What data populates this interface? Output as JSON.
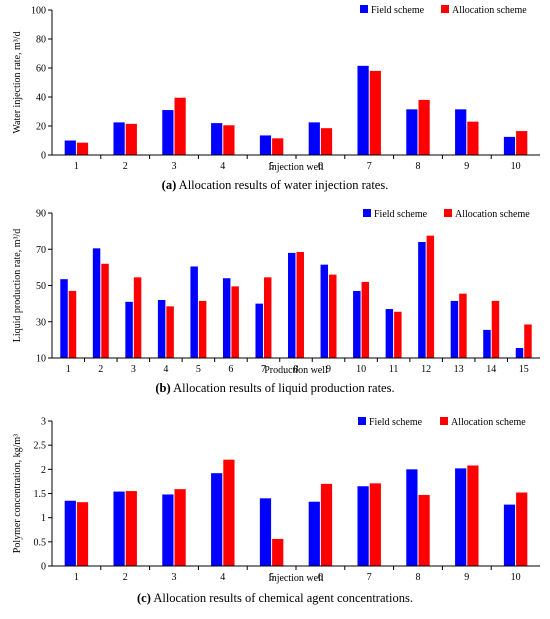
{
  "colors": {
    "field": "#0000ff",
    "allocation": "#ff0000",
    "axis": "#000000"
  },
  "chart_data": [
    {
      "type": "bar",
      "ylabel": "Water injection rate, m³/d",
      "xlabel": "Injection well",
      "caption": {
        "letter": "(a)",
        "text": " Allocation results of water injection rates."
      },
      "ylim": [
        0,
        100
      ],
      "yticks": [
        0,
        20,
        40,
        60,
        80,
        100
      ],
      "ytick_labels": [
        "0",
        "20",
        "40",
        "60",
        "80",
        "100"
      ],
      "categories": [
        "1",
        "2",
        "3",
        "4",
        "5",
        "6",
        "7",
        "8",
        "9",
        "10"
      ],
      "legend_position": "top-right",
      "series": [
        {
          "name": "Field scheme",
          "values": [
            10,
            22.5,
            31,
            22,
            13.5,
            22.5,
            61.5,
            31.5,
            31.5,
            12.5
          ]
        },
        {
          "name": "Allocation scheme",
          "values": [
            8.5,
            21.5,
            39.5,
            20.5,
            11.5,
            18.5,
            58,
            38,
            23,
            16.5
          ]
        }
      ]
    },
    {
      "type": "bar",
      "ylabel": "Liquid production rate, m³/d",
      "xlabel": "Production well",
      "caption": {
        "letter": "(b)",
        "text": " Allocation results of liquid production rates."
      },
      "ylim": [
        10,
        90
      ],
      "yticks": [
        10,
        30,
        50,
        70,
        90
      ],
      "ytick_labels": [
        "10",
        "30",
        "50",
        "70",
        "90"
      ],
      "categories": [
        "1",
        "2",
        "3",
        "4",
        "5",
        "6",
        "7",
        "8",
        "9",
        "10",
        "11",
        "12",
        "13",
        "14",
        "15"
      ],
      "legend_position": "top-right",
      "series": [
        {
          "name": "Field scheme",
          "values": [
            53.5,
            70.5,
            41,
            42,
            60.5,
            54,
            40,
            68,
            61.5,
            47,
            37,
            74,
            41.5,
            25.5,
            15.5
          ]
        },
        {
          "name": "Allocation scheme",
          "values": [
            47,
            62,
            54.5,
            38.5,
            41.5,
            49.5,
            54.5,
            68.5,
            56,
            52,
            35.5,
            77.5,
            45.5,
            41.5,
            28.5
          ]
        }
      ]
    },
    {
      "type": "bar",
      "ylabel": "Polymer concentration, kg/m³",
      "xlabel": "Injection well",
      "caption": {
        "letter": "(c)",
        "text": " Allocation results of chemical agent concentrations."
      },
      "ylim": [
        0,
        3
      ],
      "yticks": [
        0,
        0.5,
        1,
        1.5,
        2,
        2.5,
        3
      ],
      "ytick_labels": [
        "0",
        "0.5",
        "1",
        "1.5",
        "2",
        "2.5",
        "3"
      ],
      "categories": [
        "1",
        "2",
        "3",
        "4",
        "5",
        "6",
        "7",
        "8",
        "9",
        "10"
      ],
      "legend_position": "top-right",
      "series": [
        {
          "name": "Field scheme",
          "values": [
            1.35,
            1.54,
            1.48,
            1.92,
            1.4,
            1.33,
            1.65,
            2.0,
            2.02,
            1.27
          ]
        },
        {
          "name": "Allocation scheme",
          "values": [
            1.32,
            1.55,
            1.59,
            2.2,
            0.56,
            1.7,
            1.71,
            1.47,
            2.08,
            1.52
          ]
        }
      ]
    }
  ]
}
